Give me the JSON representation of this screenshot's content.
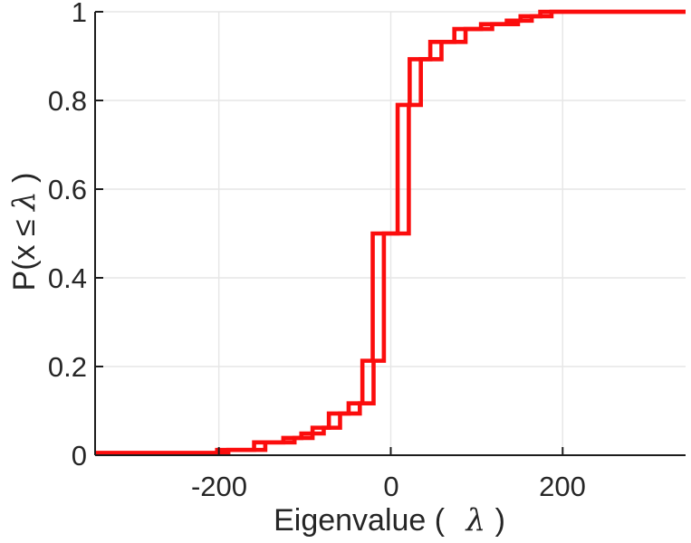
{
  "figure": {
    "background": "#ffffff",
    "title": ""
  },
  "chart_data": {
    "type": "line",
    "subtype": "ecdf_stairs",
    "title": "",
    "xlabel": "Eigenvalue ( λ)",
    "ylabel": "P(x ≤ λ)",
    "xlabel_prefix": "Eigenvalue (",
    "xlabel_lambda": "λ",
    "xlabel_suffix": ")",
    "ylabel_prefix": "P(x ≤ ",
    "ylabel_lambda": "λ",
    "ylabel_suffix": ")",
    "xlim": [
      -344,
      343
    ],
    "ylim": [
      0,
      1
    ],
    "xticks": [
      -200,
      0,
      200
    ],
    "yticks": [
      0,
      0.2,
      0.4,
      0.6,
      0.8,
      1
    ],
    "xtick_labels": [
      "-200",
      "0",
      "200"
    ],
    "ytick_labels_top_to_bottom": [
      "1",
      "0.8",
      "0.6",
      "0.4",
      "0.2",
      "0"
    ],
    "grid": true,
    "grid_color": "#e6e6e6",
    "axis_color": "#1c1c1c",
    "text_color": "#262626",
    "legend": null,
    "series": [
      {
        "name": "eigenvalue-ecdf-curve-1",
        "color": "#fb0d0d",
        "line_width": 4.6,
        "steps_lambda_p": [
          [
            -202,
            0.012
          ],
          [
            -159,
            0.029
          ],
          [
            -125,
            0.039
          ],
          [
            -104,
            0.049
          ],
          [
            -91,
            0.062
          ],
          [
            -72,
            0.094
          ],
          [
            -49,
            0.117
          ],
          [
            -33,
            0.213
          ],
          [
            -21,
            0.5
          ],
          [
            8,
            0.79
          ],
          [
            22,
            0.893
          ],
          [
            46,
            0.932
          ],
          [
            74,
            0.961
          ],
          [
            105,
            0.972
          ],
          [
            135,
            0.98
          ],
          [
            151,
            0.99
          ],
          [
            174,
            1.0
          ]
        ]
      },
      {
        "name": "eigenvalue-ecdf-curve-2",
        "color": "#fb0d0d",
        "line_width": 4.6,
        "x_offset_from_curve_1": 13
      }
    ]
  }
}
